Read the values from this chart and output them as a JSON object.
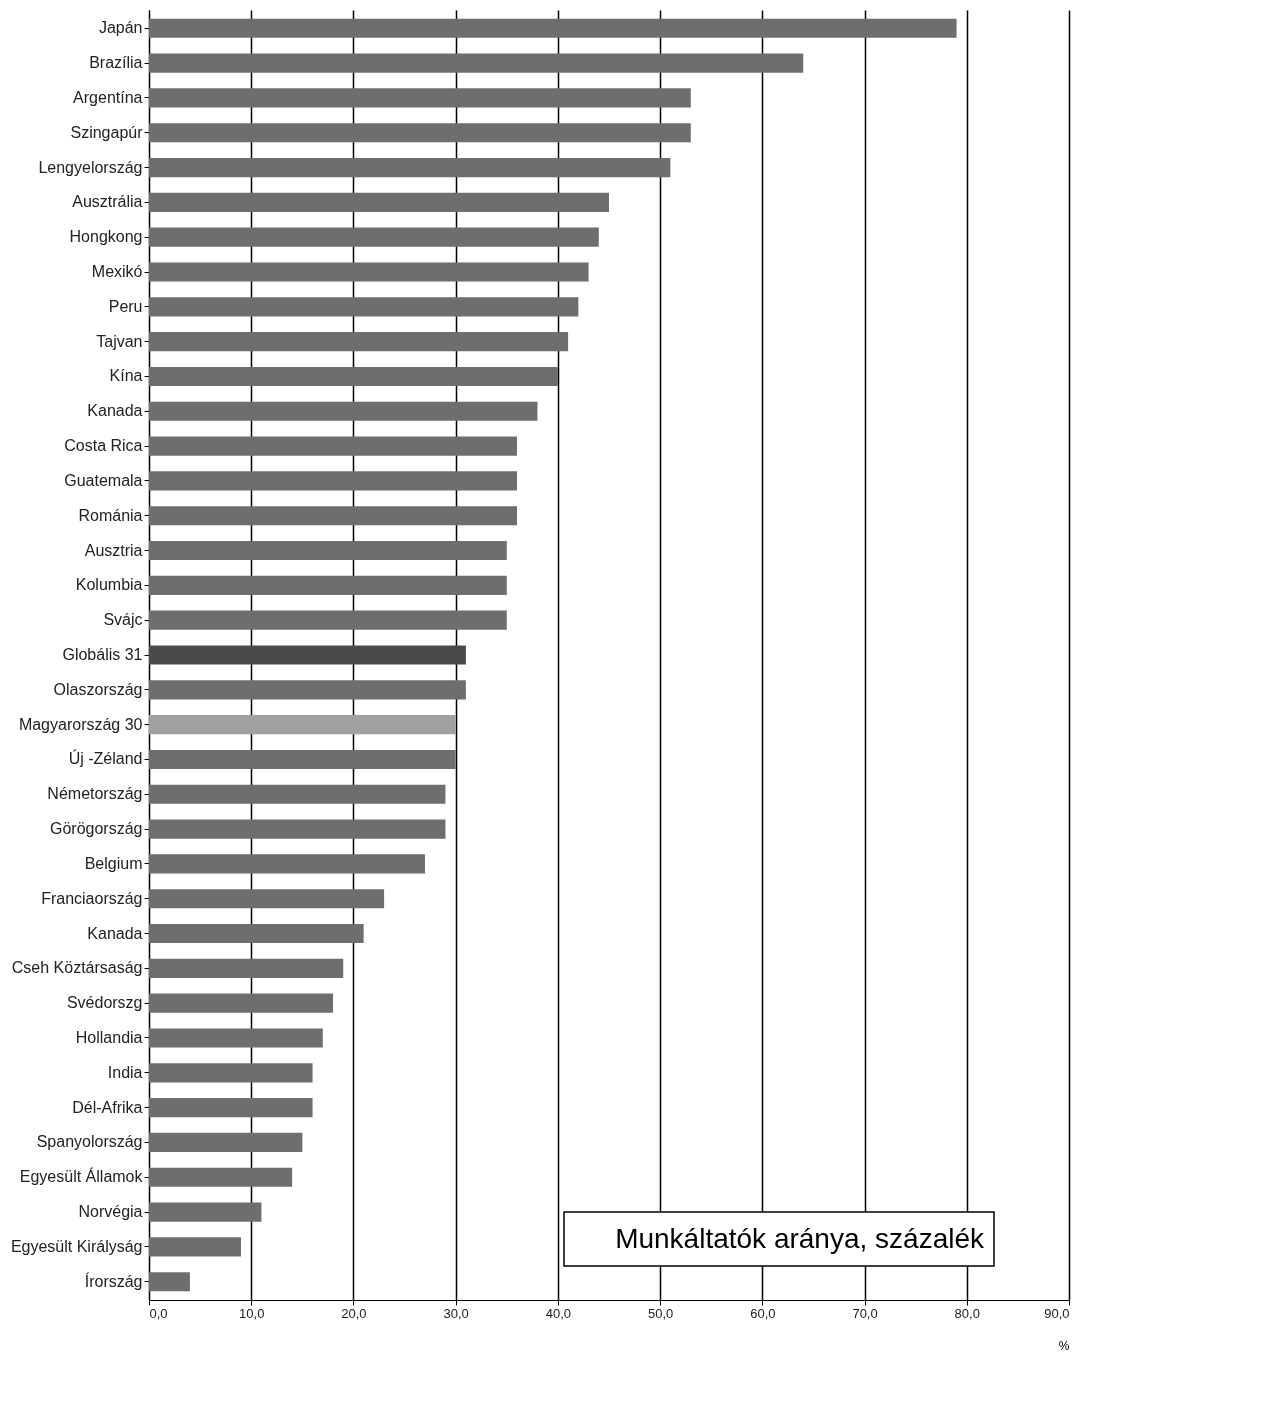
{
  "chart_data": {
    "type": "bar",
    "orientation": "horizontal",
    "categories": [
      "Japán",
      "Brazília",
      "Argentína",
      "Szingapúr",
      "Lengyelország",
      "Ausztrália",
      "Hongkong",
      "Mexikó",
      "Peru",
      "Tajvan",
      "Kína",
      "Kanada",
      "Costa Rica",
      "Guatemala",
      "Románia",
      "Ausztria",
      "Kolumbia",
      "Svájc",
      "Globális  31",
      "Olaszország",
      "Magyarország 30",
      "Új -Zéland",
      "Németország",
      "Görögország",
      "Belgium",
      "Franciaország",
      "Kanada",
      "Cseh Köztársaság",
      "Svédorszg",
      "Hollandia",
      "India",
      "Dél-Afrika",
      "Spanyolország",
      "Egyesült Államok",
      "Norvégia",
      "Egyesült Királyság",
      "Írország"
    ],
    "values": [
      79,
      64,
      53,
      53,
      51,
      45,
      44,
      43,
      42,
      41,
      40,
      38,
      36,
      36,
      36,
      35,
      35,
      35,
      31,
      31,
      30,
      30,
      29,
      29,
      27,
      23,
      21,
      19,
      18,
      17,
      16,
      16,
      15,
      14,
      11,
      9,
      4
    ],
    "colors": [
      "#6e6e6e",
      "#6e6e6e",
      "#6e6e6e",
      "#6e6e6e",
      "#6e6e6e",
      "#6e6e6e",
      "#6e6e6e",
      "#6e6e6e",
      "#6e6e6e",
      "#6e6e6e",
      "#6e6e6e",
      "#6e6e6e",
      "#6e6e6e",
      "#6e6e6e",
      "#6e6e6e",
      "#6e6e6e",
      "#6e6e6e",
      "#6e6e6e",
      "#4a4a4a",
      "#6e6e6e",
      "#a0a0a0",
      "#6e6e6e",
      "#6e6e6e",
      "#6e6e6e",
      "#6e6e6e",
      "#6e6e6e",
      "#6e6e6e",
      "#6e6e6e",
      "#6e6e6e",
      "#6e6e6e",
      "#6e6e6e",
      "#6e6e6e",
      "#6e6e6e",
      "#6e6e6e",
      "#6e6e6e",
      "#6e6e6e",
      "#6e6e6e"
    ],
    "xlim": [
      0,
      90
    ],
    "xticks": [
      {
        "value": 0,
        "label": "0,0"
      },
      {
        "value": 10,
        "label": "10,0"
      },
      {
        "value": 20,
        "label": "20,0"
      },
      {
        "value": 30,
        "label": "30,0"
      },
      {
        "value": 40,
        "label": "40,0"
      },
      {
        "value": 50,
        "label": "50,0"
      },
      {
        "value": 60,
        "label": "60,0"
      },
      {
        "value": 70,
        "label": "70,0"
      },
      {
        "value": 80,
        "label": "80,0"
      },
      {
        "value": 90,
        "label": "90,0"
      }
    ],
    "xlabel": "%",
    "grid": "x",
    "annotations": [
      "Munkáltatók aránya, százalék"
    ]
  }
}
